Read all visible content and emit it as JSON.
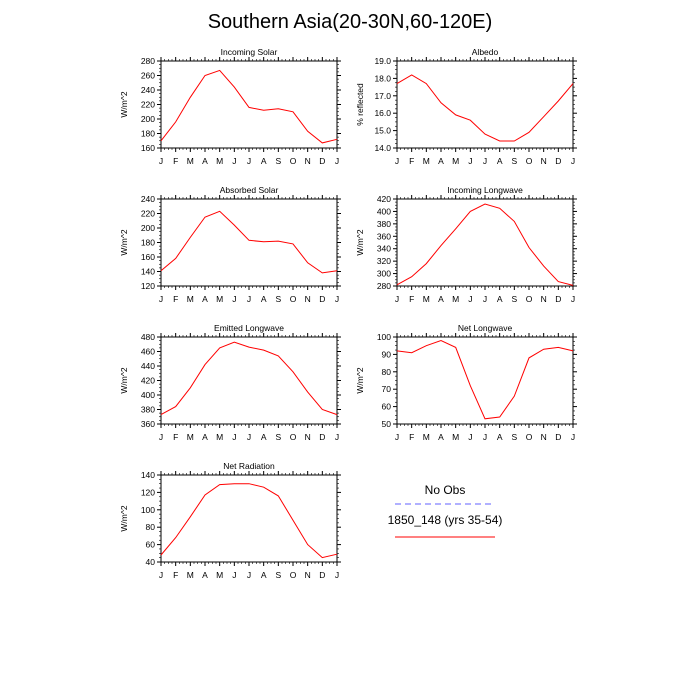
{
  "title": "Southern Asia(20-30N,60-120E)",
  "legend": {
    "entries": [
      {
        "label": "No Obs",
        "color": "#8080ff",
        "style": "dashed"
      },
      {
        "label": "1850_148 (yrs 35-54)",
        "color": "#ff0000",
        "style": "solid"
      }
    ]
  },
  "chart_data": [
    {
      "type": "line",
      "title": "Incoming Solar",
      "ylabel": "W/m^2",
      "x": [
        "J",
        "F",
        "M",
        "A",
        "M",
        "J",
        "J",
        "A",
        "S",
        "O",
        "N",
        "D",
        "J"
      ],
      "ylim": [
        160,
        280
      ],
      "yticks": [
        "160",
        "180",
        "200",
        "220",
        "240",
        "260",
        "280"
      ],
      "grid": false,
      "series": [
        {
          "values": [
            170,
            196,
            230,
            260,
            267,
            244,
            216,
            212,
            214,
            210,
            183,
            167,
            172
          ]
        }
      ]
    },
    {
      "type": "line",
      "title": "Albedo",
      "ylabel": "% reflected",
      "x": [
        "J",
        "F",
        "M",
        "A",
        "M",
        "J",
        "J",
        "A",
        "S",
        "O",
        "N",
        "D",
        "J"
      ],
      "ylim": [
        14,
        19
      ],
      "yticks": [
        "14.0",
        "15.0",
        "16.0",
        "17.0",
        "18.0",
        "19.0"
      ],
      "grid": false,
      "series": [
        {
          "values": [
            17.7,
            18.2,
            17.7,
            16.6,
            15.9,
            15.6,
            14.8,
            14.4,
            14.4,
            14.9,
            15.8,
            16.7,
            17.7
          ]
        }
      ]
    },
    {
      "type": "line",
      "title": "Absorbed Solar",
      "ylabel": "W/m^2",
      "x": [
        "J",
        "F",
        "M",
        "A",
        "M",
        "J",
        "J",
        "A",
        "S",
        "O",
        "N",
        "D",
        "J"
      ],
      "ylim": [
        120,
        240
      ],
      "yticks": [
        "120",
        "140",
        "160",
        "180",
        "200",
        "220",
        "240"
      ],
      "grid": false,
      "series": [
        {
          "values": [
            141,
            158,
            187,
            215,
            223,
            204,
            183,
            181,
            182,
            178,
            152,
            138,
            141
          ]
        }
      ]
    },
    {
      "type": "line",
      "title": "Incoming Longwave",
      "ylabel": "W/m^2",
      "x": [
        "J",
        "F",
        "M",
        "A",
        "M",
        "J",
        "J",
        "A",
        "S",
        "O",
        "N",
        "D",
        "J"
      ],
      "ylim": [
        280,
        420
      ],
      "yticks": [
        "280",
        "300",
        "320",
        "340",
        "360",
        "380",
        "400",
        "420"
      ],
      "grid": false,
      "series": [
        {
          "values": [
            282,
            295,
            316,
            345,
            372,
            400,
            412,
            405,
            384,
            342,
            312,
            287,
            281
          ]
        }
      ]
    },
    {
      "type": "line",
      "title": "Emitted Longwave",
      "ylabel": "W/m^2",
      "x": [
        "J",
        "F",
        "M",
        "A",
        "M",
        "J",
        "J",
        "A",
        "S",
        "O",
        "N",
        "D",
        "J"
      ],
      "ylim": [
        360,
        480
      ],
      "yticks": [
        "360",
        "380",
        "400",
        "420",
        "440",
        "460",
        "480"
      ],
      "grid": false,
      "series": [
        {
          "values": [
            373,
            384,
            410,
            442,
            465,
            473,
            466,
            462,
            454,
            432,
            404,
            380,
            373
          ]
        }
      ]
    },
    {
      "type": "line",
      "title": "Net Longwave",
      "ylabel": "W/m^2",
      "x": [
        "J",
        "F",
        "M",
        "A",
        "M",
        "J",
        "J",
        "A",
        "S",
        "O",
        "N",
        "D",
        "J"
      ],
      "ylim": [
        50,
        100
      ],
      "yticks": [
        "50",
        "60",
        "70",
        "80",
        "90",
        "100"
      ],
      "grid": false,
      "series": [
        {
          "values": [
            92,
            91,
            95,
            98,
            94,
            72,
            53,
            54,
            66,
            88,
            93,
            94,
            92
          ]
        }
      ]
    },
    {
      "type": "line",
      "title": "Net Radiation",
      "ylabel": "W/m^2",
      "x": [
        "J",
        "F",
        "M",
        "A",
        "M",
        "J",
        "J",
        "A",
        "S",
        "O",
        "N",
        "D",
        "J"
      ],
      "ylim": [
        40,
        140
      ],
      "yticks": [
        "40",
        "60",
        "80",
        "100",
        "120",
        "140"
      ],
      "grid": false,
      "series": [
        {
          "values": [
            48,
            68,
            92,
            117,
            129,
            130,
            130,
            126,
            116,
            88,
            60,
            45,
            49
          ]
        }
      ]
    }
  ]
}
